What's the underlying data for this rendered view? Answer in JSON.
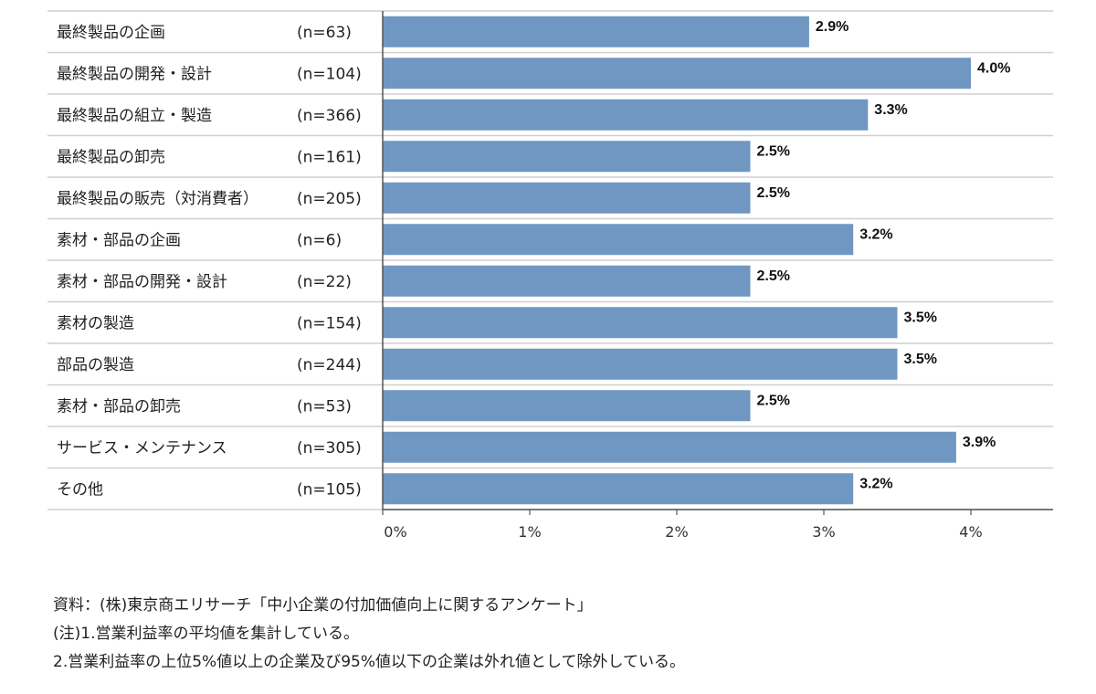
{
  "chart_data": {
    "type": "bar",
    "orientation": "horizontal",
    "categories": [
      "最終製品の企画",
      "最終製品の開発・設計",
      "最終製品の組立・製造",
      "最終製品の卸売",
      "最終製品の販売（対消費者）",
      "素材・部品の企画",
      "素材・部品の開発・設計",
      "素材の製造",
      "部品の製造",
      "素材・部品の卸売",
      "サービス・メンテナンス",
      "その他"
    ],
    "sample_sizes": [
      "(n=63)",
      "(n=104)",
      "(n=366)",
      "(n=161)",
      "(n=205)",
      "(n=6)",
      "(n=22)",
      "(n=154)",
      "(n=244)",
      "(n=53)",
      "(n=305)",
      "(n=105)"
    ],
    "values": [
      2.9,
      4.0,
      3.3,
      2.5,
      2.5,
      3.2,
      2.5,
      3.5,
      3.5,
      2.5,
      3.9,
      3.2
    ],
    "value_labels": [
      "2.9%",
      "4.0%",
      "3.3%",
      "2.5%",
      "2.5%",
      "3.2%",
      "2.5%",
      "3.5%",
      "3.5%",
      "2.5%",
      "3.9%",
      "3.2%"
    ],
    "xlim": [
      0,
      4.5
    ],
    "xticks": [
      0,
      1,
      2,
      3,
      4
    ],
    "xtick_labels": [
      "0%",
      "1%",
      "2%",
      "3%",
      "4%"
    ],
    "bar_color": "#7097c1",
    "grid": false,
    "legend": "none"
  },
  "notes": [
    "資料：(株)東京商エリサーチ「中小企業の付加価値向上に関するアンケート」",
    "(注)1.営業利益率の平均値を集計している。",
    "2.営業利益率の上位5%値以上の企業及び95%値以下の企業は外れ値として除外している。"
  ]
}
